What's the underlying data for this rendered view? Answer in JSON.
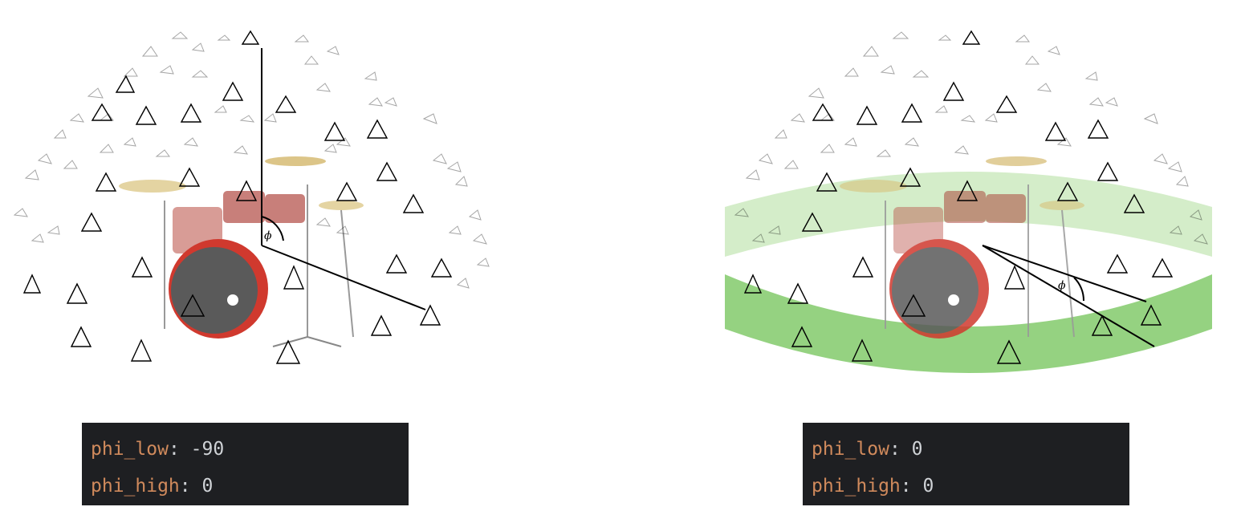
{
  "left": {
    "label": "ϕ",
    "code": [
      {
        "key": "phi_low",
        "value": "-90"
      },
      {
        "key": "phi_high",
        "value": "0"
      }
    ]
  },
  "right": {
    "label": "ϕ",
    "code": [
      {
        "key": "phi_low",
        "value": "0"
      },
      {
        "key": "phi_high",
        "value": "0"
      }
    ]
  },
  "colors": {
    "band_light": "#cdeac0",
    "band_dark": "#8fd07a",
    "code_bg": "#1e1f22",
    "code_key": "#d08a5c",
    "code_text": "#cfd2d6"
  }
}
